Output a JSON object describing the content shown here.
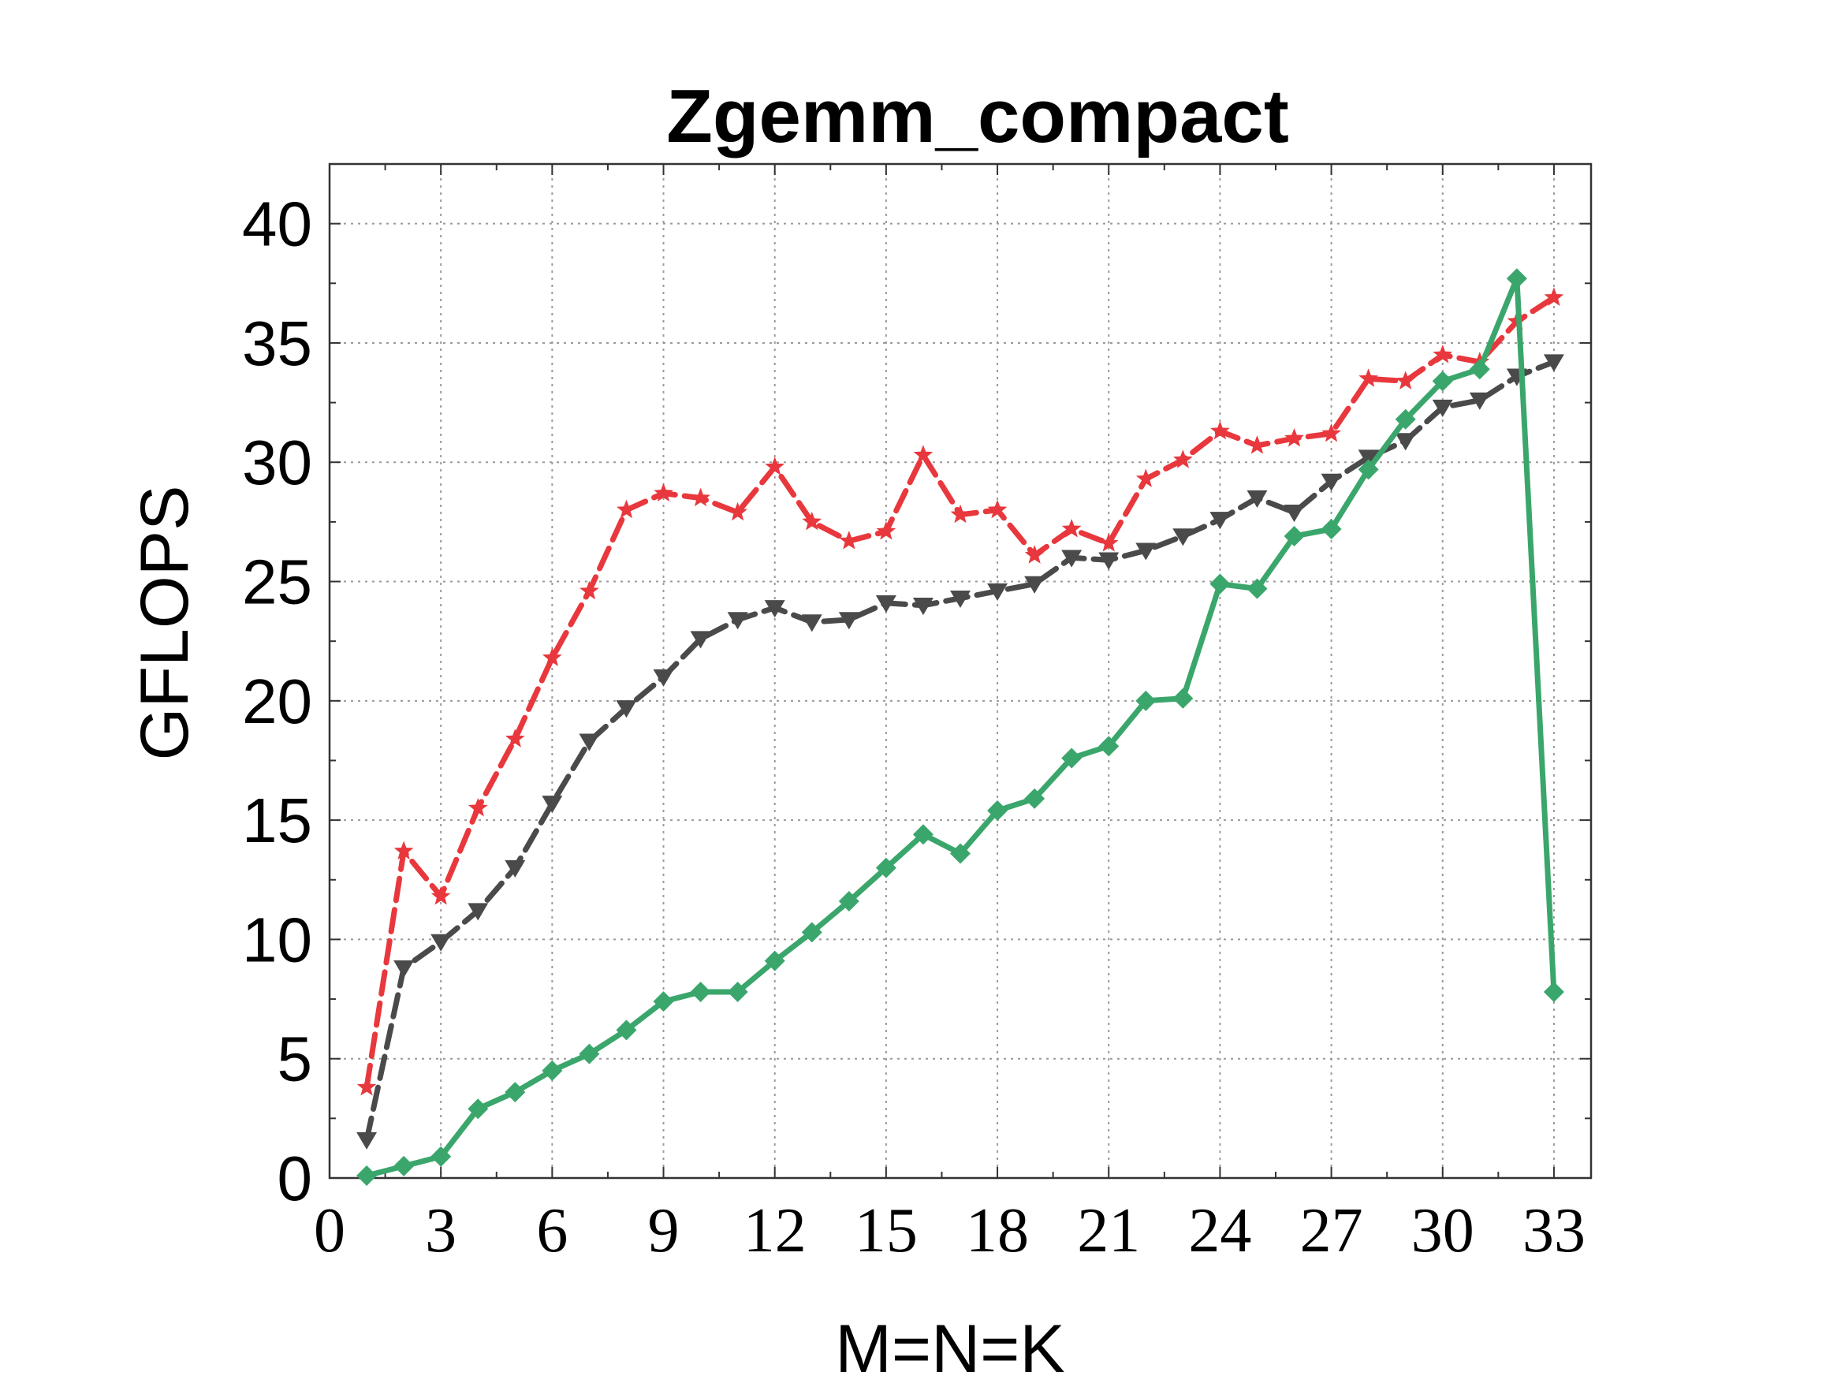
{
  "chart_data": {
    "type": "line",
    "title": "Zgemm_compact",
    "xlabel": "M=N=K",
    "ylabel": "GFLOPS",
    "xlim": [
      0,
      34
    ],
    "ylim": [
      0,
      42.5
    ],
    "xticks": [
      0,
      3,
      6,
      9,
      12,
      15,
      18,
      21,
      24,
      27,
      30,
      33
    ],
    "yticks": [
      0,
      5,
      10,
      15,
      20,
      25,
      30,
      35,
      40
    ],
    "grid": true,
    "x": [
      1,
      2,
      3,
      4,
      5,
      6,
      7,
      8,
      9,
      10,
      11,
      12,
      13,
      14,
      15,
      16,
      17,
      18,
      19,
      20,
      21,
      22,
      23,
      24,
      25,
      26,
      27,
      28,
      29,
      30,
      31,
      32,
      33
    ],
    "series": [
      {
        "color": "#e8383d",
        "marker": "star",
        "linestyle": "dashed",
        "values": [
          3.8,
          13.7,
          11.8,
          15.5,
          18.4,
          21.8,
          24.6,
          28.0,
          28.7,
          28.5,
          27.9,
          29.8,
          27.5,
          26.7,
          27.1,
          30.3,
          27.8,
          28.0,
          26.1,
          27.2,
          26.6,
          29.3,
          30.1,
          31.3,
          30.7,
          31.0,
          31.2,
          33.5,
          33.4,
          34.5,
          34.2,
          35.9,
          36.9
        ]
      },
      {
        "color": "#4a4a4a",
        "marker": "triangle-down",
        "linestyle": "dashed",
        "values": [
          1.6,
          8.8,
          9.9,
          11.2,
          13.0,
          15.7,
          18.3,
          19.7,
          21.0,
          22.6,
          23.4,
          23.9,
          23.3,
          23.4,
          24.1,
          24.0,
          24.3,
          24.6,
          24.9,
          26.0,
          25.9,
          26.3,
          26.9,
          27.6,
          28.5,
          27.9,
          29.2,
          30.2,
          30.9,
          32.3,
          32.6,
          33.6,
          34.2
        ]
      },
      {
        "color": "#3aa66b",
        "marker": "diamond",
        "linestyle": "solid",
        "values": [
          0.1,
          0.5,
          0.9,
          2.9,
          3.6,
          4.5,
          5.2,
          6.2,
          7.4,
          7.8,
          7.8,
          9.1,
          10.3,
          11.6,
          13.0,
          14.4,
          13.6,
          15.4,
          15.9,
          17.6,
          18.1,
          20.0,
          20.1,
          24.9,
          24.7,
          26.9,
          27.2,
          29.7,
          31.8,
          33.4,
          33.9,
          37.7,
          7.8
        ]
      }
    ]
  }
}
